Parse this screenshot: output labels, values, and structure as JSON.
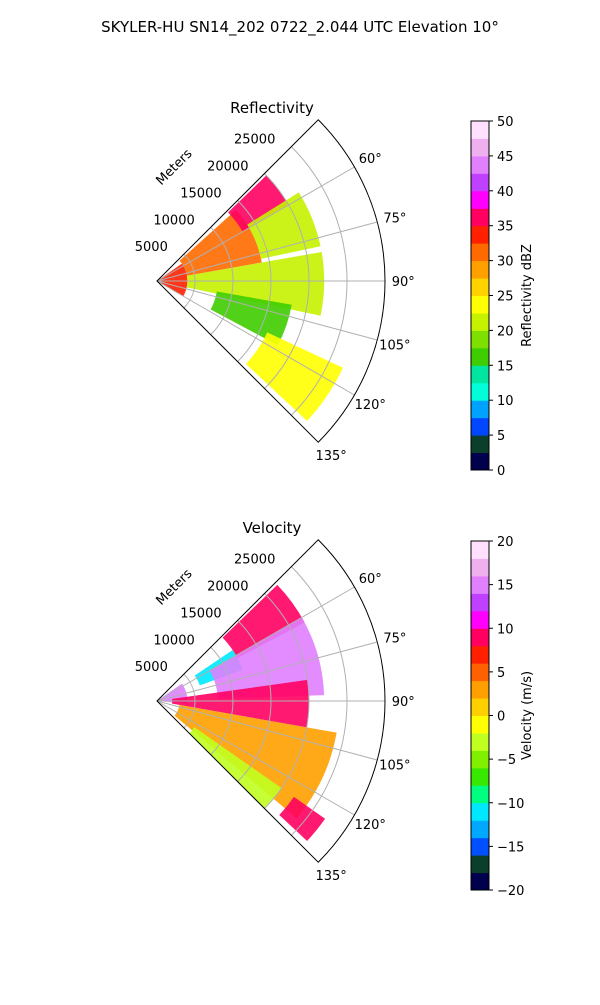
{
  "figure": {
    "title": "SKYLER-HU  SN14_202  0722_2.044 UTC Elevation 10°"
  },
  "chart_data": [
    {
      "type": "heatmap",
      "subtype": "polar-sector-ppi",
      "title": "Reflectivity",
      "radial_label": "Meters",
      "radial_ticks": [
        "5000",
        "10000",
        "15000",
        "20000",
        "25000"
      ],
      "radial_max": 30000,
      "azimuth_range_deg": [
        45,
        135
      ],
      "azimuth_ticks": [
        "60°",
        "75°",
        "90°",
        "105°",
        "120°",
        "135°"
      ],
      "colorbar": {
        "label": "Reflectivity dBZ",
        "range": [
          0,
          50
        ],
        "ticks": [
          "0",
          "5",
          "10",
          "15",
          "20",
          "25",
          "30",
          "35",
          "40",
          "45",
          "50"
        ],
        "colors": [
          "#00004c",
          "#0c3e2c",
          "#0047ff",
          "#00a2ff",
          "#00ffd8",
          "#00e6a0",
          "#3ecd00",
          "#7ee000",
          "#c6f200",
          "#ffff00",
          "#ffd200",
          "#ffa000",
          "#ff6a00",
          "#ff2000",
          "#ff0060",
          "#ff00ff",
          "#c040ff",
          "#e080ff",
          "#f0b0f0",
          "#ffe0ff"
        ]
      },
      "echo_regions": [
        {
          "range_m": [
            0,
            4000
          ],
          "az_deg": [
            55,
            120
          ],
          "value": 33
        },
        {
          "range_m": [
            4000,
            14000
          ],
          "az_deg": [
            48,
            80
          ],
          "value": 30
        },
        {
          "range_m": [
            13000,
            20000
          ],
          "az_deg": [
            46,
            60
          ],
          "value": 36
        },
        {
          "range_m": [
            14000,
            22000
          ],
          "az_deg": [
            58,
            78
          ],
          "value": 22
        },
        {
          "range_m": [
            4000,
            22000
          ],
          "az_deg": [
            80,
            102
          ],
          "value": 21
        },
        {
          "range_m": [
            8000,
            18000
          ],
          "az_deg": [
            100,
            118
          ],
          "value": 15
        },
        {
          "range_m": [
            16000,
            27000
          ],
          "az_deg": [
            115,
            133
          ],
          "value": 23
        }
      ]
    },
    {
      "type": "heatmap",
      "subtype": "polar-sector-ppi",
      "title": "Velocity",
      "radial_label": "Meters",
      "radial_ticks": [
        "5000",
        "10000",
        "15000",
        "20000",
        "25000"
      ],
      "radial_max": 30000,
      "azimuth_range_deg": [
        45,
        135
      ],
      "azimuth_ticks": [
        "60°",
        "75°",
        "90°",
        "105°",
        "120°",
        "135°"
      ],
      "colorbar": {
        "label": "Velocity (m/s)",
        "range": [
          -20,
          20
        ],
        "ticks": [
          "−20",
          "−15",
          "−10",
          "−5",
          "0",
          "5",
          "10",
          "15",
          "20"
        ],
        "colors": [
          "#00004c",
          "#0c3e2c",
          "#0050ff",
          "#00a8ff",
          "#00e8ff",
          "#00ff80",
          "#38e800",
          "#80f000",
          "#c0ff20",
          "#ffff00",
          "#ffd000",
          "#ffa000",
          "#ff6000",
          "#ff2000",
          "#ff0060",
          "#ff00ff",
          "#c040ff",
          "#e080ff",
          "#f0b0f0",
          "#ffe0ff"
        ]
      },
      "echo_regions": [
        {
          "range_m": [
            0,
            4000
          ],
          "az_deg": [
            55,
            95
          ],
          "value": 15
        },
        {
          "range_m": [
            6000,
            12000
          ],
          "az_deg": [
            56,
            70
          ],
          "value": -12
        },
        {
          "range_m": [
            12000,
            22000
          ],
          "az_deg": [
            46,
            62
          ],
          "value": 8
        },
        {
          "range_m": [
            8000,
            22000
          ],
          "az_deg": [
            60,
            88
          ],
          "value": 15
        },
        {
          "range_m": [
            2000,
            20000
          ],
          "az_deg": [
            82,
            100
          ],
          "value": 9
        },
        {
          "range_m": [
            3000,
            24000
          ],
          "az_deg": [
            100,
            130
          ],
          "value": 2
        },
        {
          "range_m": [
            6000,
            20000
          ],
          "az_deg": [
            125,
            135
          ],
          "value": -4
        },
        {
          "range_m": [
            22000,
            27000
          ],
          "az_deg": [
            125,
            133
          ],
          "value": 8
        }
      ]
    }
  ]
}
